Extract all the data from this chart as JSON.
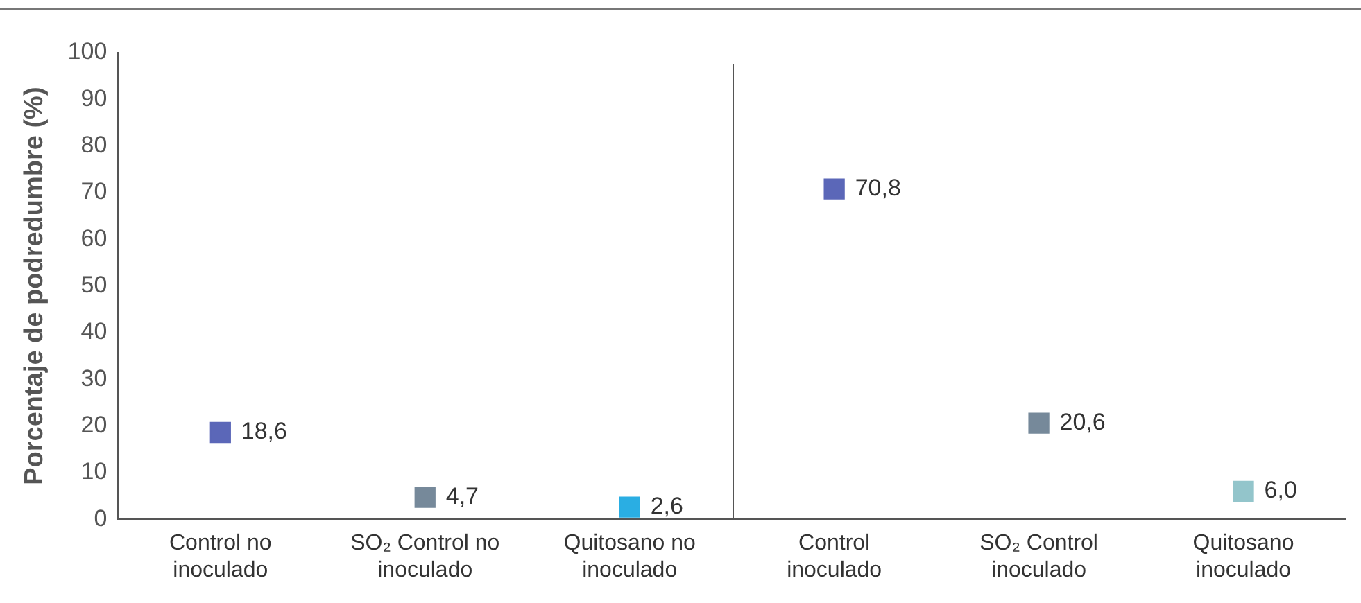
{
  "chart_data": {
    "type": "scatter",
    "ylabel": "Porcentaje de podredumbre (%)",
    "categories": [
      "Control no inoculado",
      "SO₂ Control no inoculado",
      "Quitosano no inoculado",
      "Control inoculado",
      "SO₂ Control inoculado",
      "Quitosano inoculado"
    ],
    "values": [
      18.6,
      4.7,
      2.6,
      70.8,
      20.6,
      6.0
    ],
    "colors": [
      "#5b67b8",
      "#76899a",
      "#2aaee3",
      "#5b67b8",
      "#76899a",
      "#93c5cb"
    ],
    "value_labels": [
      "18,6",
      "4,7",
      "2,6",
      "70,8",
      "20,6",
      "6,0"
    ],
    "ylim": [
      0,
      100
    ],
    "yticks": [
      0,
      10,
      20,
      30,
      40,
      50,
      60,
      70,
      80,
      90,
      100
    ],
    "grid": false,
    "legend": false,
    "marker": "square"
  }
}
